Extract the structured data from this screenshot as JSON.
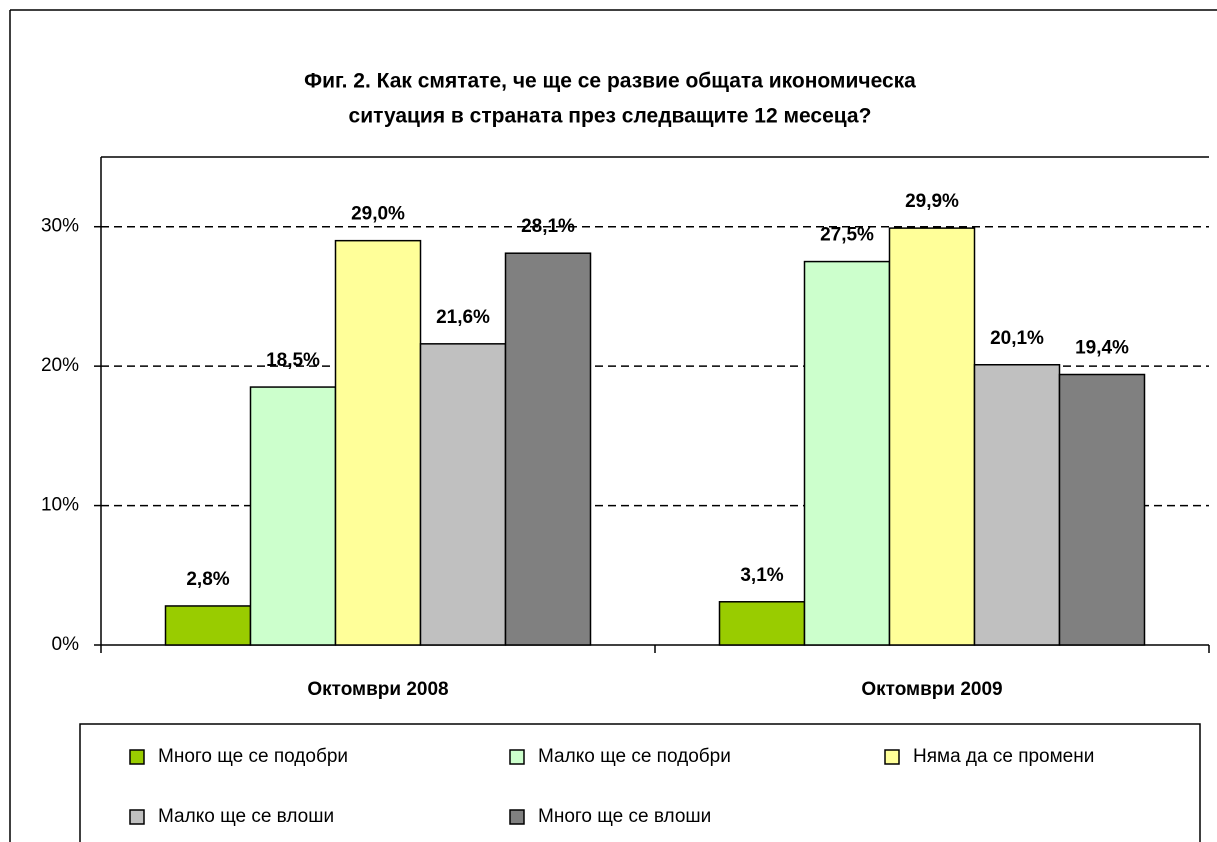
{
  "chart_data": {
    "type": "bar",
    "title": [
      "Фиг. 2. Как смятате, че ще се развие общата икономическа",
      "ситуация в страната през следващите 12 месеца?"
    ],
    "categories": [
      "Октомври 2008",
      "Октомври 2009"
    ],
    "series": [
      {
        "name": "Много ще се подобри",
        "color": "#99cc00",
        "values": [
          2.8,
          3.1
        ],
        "value_labels": [
          "2,8%",
          "3,1%"
        ]
      },
      {
        "name": "Малко ще се подобри",
        "color": "#ccffcc",
        "values": [
          18.5,
          27.5
        ],
        "value_labels": [
          "18,5%",
          "27,5%"
        ]
      },
      {
        "name": "Няма да се промени",
        "color": "#ffff99",
        "values": [
          29.0,
          29.9
        ],
        "value_labels": [
          "29,0%",
          "29,9%"
        ]
      },
      {
        "name": "Малко ще се влоши",
        "color": "#c0c0c0",
        "values": [
          21.6,
          20.1
        ],
        "value_labels": [
          "21,6%",
          "20,1%"
        ]
      },
      {
        "name": "Много ще се влоши",
        "color": "#808080",
        "values": [
          28.1,
          19.4
        ],
        "value_labels": [
          "28,1%",
          "19,4%"
        ]
      }
    ],
    "ylim": [
      0,
      35
    ],
    "yticks": [
      {
        "value": 0,
        "label": "0%"
      },
      {
        "value": 10,
        "label": "10%"
      },
      {
        "value": 20,
        "label": "20%"
      },
      {
        "value": 30,
        "label": "30%"
      }
    ],
    "grid": true,
    "legend": "bottom"
  }
}
